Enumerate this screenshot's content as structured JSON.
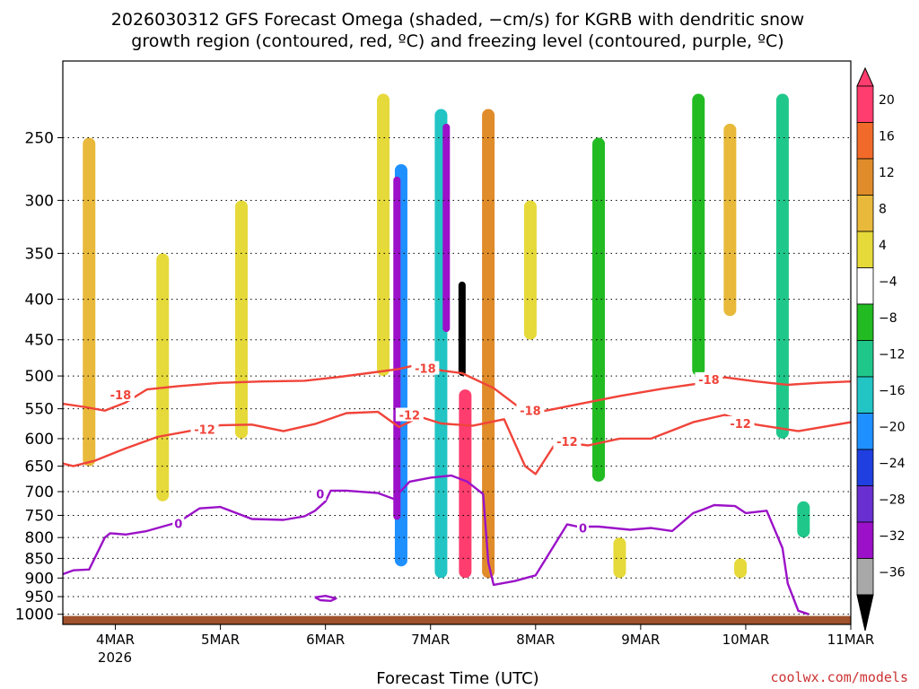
{
  "chart_data": {
    "type": "heatmap",
    "title_line1": "2026030312 GFS Forecast Omega (shaded, −cm/s) for KGRB with dendritic snow",
    "title_line2": "growth region (contoured, red, ºC) and freezing level (contoured, purple, ºC)",
    "xlabel": "Forecast Time (UTC)",
    "ylabel": "",
    "credit": "coolwx.com/models",
    "x_tick_labels": [
      "4MAR",
      "5MAR",
      "6MAR",
      "7MAR",
      "8MAR",
      "9MAR",
      "10MAR",
      "11MAR"
    ],
    "x_year_label": "2026",
    "x_day_range": [
      3.5,
      11
    ],
    "y_tick_labels": [
      "250",
      "300",
      "350",
      "400",
      "450",
      "500",
      "550",
      "600",
      "650",
      "700",
      "750",
      "800",
      "850",
      "900",
      "950",
      "1000"
    ],
    "y_pressure_range": [
      200,
      1030
    ],
    "y_scale": "log-pressure",
    "grid": true,
    "colorbar_labels": [
      "20",
      "16",
      "12",
      "8",
      "4",
      "−4",
      "−8",
      "−12",
      "−16",
      "−20",
      "−24",
      "−28",
      "−32",
      "−36"
    ],
    "colorbar_colors": [
      "#ff3d6e",
      "#f26a2a",
      "#e08c2a",
      "#e8b93a",
      "#e6d93a",
      "#ffffff",
      "#22bb22",
      "#1fc88a",
      "#22c4c4",
      "#1e90ff",
      "#1f3fe0",
      "#6a2fd0",
      "#9b10c8",
      "#a8a8a8",
      "#000000"
    ],
    "omega_features": [
      {
        "day": 3.75,
        "p_top": 250,
        "p_bot": 650,
        "value": 8
      },
      {
        "day": 4.45,
        "p_top": 350,
        "p_bot": 720,
        "value": 6
      },
      {
        "day": 5.2,
        "p_top": 300,
        "p_bot": 600,
        "value": 6
      },
      {
        "day": 6.55,
        "p_top": 220,
        "p_bot": 500,
        "value": 6
      },
      {
        "day": 6.72,
        "p_top": 270,
        "p_bot": 870,
        "value": -16
      },
      {
        "day": 6.68,
        "p_top": 280,
        "p_bot": 760,
        "value": -30
      },
      {
        "day": 7.1,
        "p_top": 230,
        "p_bot": 900,
        "value": -14
      },
      {
        "day": 7.15,
        "p_top": 240,
        "p_bot": 440,
        "value": -28
      },
      {
        "day": 7.3,
        "p_top": 380,
        "p_bot": 500,
        "value": -36
      },
      {
        "day": 7.33,
        "p_top": 520,
        "p_bot": 900,
        "value": 20
      },
      {
        "day": 7.55,
        "p_top": 230,
        "p_bot": 900,
        "value": 12
      },
      {
        "day": 7.95,
        "p_top": 300,
        "p_bot": 450,
        "value": 6
      },
      {
        "day": 8.6,
        "p_top": 250,
        "p_bot": 680,
        "value": -6
      },
      {
        "day": 8.8,
        "p_top": 800,
        "p_bot": 900,
        "value": 6
      },
      {
        "day": 9.55,
        "p_top": 220,
        "p_bot": 500,
        "value": -6
      },
      {
        "day": 9.85,
        "p_top": 240,
        "p_bot": 420,
        "value": 10
      },
      {
        "day": 10.35,
        "p_top": 220,
        "p_bot": 600,
        "value": -8
      },
      {
        "day": 10.55,
        "p_top": 720,
        "p_bot": 800,
        "value": -8
      },
      {
        "day": 9.95,
        "p_top": 850,
        "p_bot": 900,
        "value": 6
      }
    ],
    "series": [
      {
        "name": "-18",
        "color": "#f0443a",
        "x": [
          3.5,
          3.7,
          3.9,
          4.1,
          4.3,
          4.6,
          5.0,
          5.4,
          5.8,
          6.1,
          6.4,
          6.7,
          6.9,
          7.1,
          7.3,
          7.6,
          7.9,
          8.1,
          8.4,
          8.8,
          9.2,
          9.6,
          9.8,
          10.1,
          10.4,
          10.7,
          11.0
        ],
        "y": [
          542,
          547,
          553,
          540,
          520,
          515,
          510,
          508,
          507,
          502,
          496,
          490,
          483,
          492,
          496,
          518,
          555,
          553,
          543,
          530,
          519,
          510,
          502,
          508,
          513,
          510,
          508
        ]
      },
      {
        "name": "-12",
        "color": "#f0443a",
        "x": [
          3.5,
          3.6,
          3.8,
          4.1,
          4.4,
          4.7,
          5.0,
          5.3,
          5.6,
          5.9,
          6.2,
          6.5,
          6.7,
          6.9,
          7.1,
          7.4,
          7.7,
          7.9,
          8.0,
          8.2,
          8.5,
          8.8,
          9.1,
          9.5,
          9.8,
          10.1,
          10.5,
          11.0
        ],
        "y": [
          645,
          650,
          640,
          617,
          597,
          587,
          577,
          576,
          587,
          575,
          557,
          555,
          580,
          563,
          574,
          578,
          567,
          650,
          665,
          605,
          612,
          600,
          600,
          572,
          560,
          576,
          587,
          572
        ]
      },
      {
        "name": "0",
        "color": "#9b12c8",
        "x": [
          3.5,
          3.6,
          3.75,
          3.9,
          3.95,
          4.1,
          4.3,
          4.6,
          4.8,
          5.0,
          5.3,
          5.6,
          5.8,
          5.9,
          6.0,
          6.05,
          6.2,
          6.5,
          6.65,
          6.8,
          7.0,
          7.2,
          7.35,
          7.5,
          7.55,
          7.6,
          7.8,
          8.0,
          8.3,
          8.4,
          8.6,
          8.9,
          9.1,
          9.3,
          9.5,
          9.6,
          9.7,
          9.9,
          10.0,
          10.2,
          10.35,
          10.4,
          10.5,
          10.6
        ],
        "y": [
          890,
          880,
          878,
          800,
          790,
          793,
          785,
          765,
          735,
          732,
          758,
          760,
          752,
          740,
          720,
          698,
          698,
          703,
          715,
          680,
          672,
          668,
          680,
          705,
          860,
          918,
          908,
          893,
          770,
          775,
          775,
          782,
          778,
          785,
          745,
          737,
          728,
          730,
          745,
          740,
          825,
          915,
          990,
          1000
        ]
      },
      {
        "name": "0",
        "color": "#9b12c8",
        "x": [
          5.9,
          6.0,
          6.1,
          6.05,
          5.95,
          5.9
        ],
        "y": [
          952,
          948,
          955,
          962,
          960,
          952
        ]
      }
    ],
    "contour_labels": [
      {
        "text": "-18",
        "color": "#f0443a",
        "day": 4.05,
        "p": 528
      },
      {
        "text": "-18",
        "color": "#f0443a",
        "day": 6.95,
        "p": 489
      },
      {
        "text": "-18",
        "color": "#f0443a",
        "day": 7.95,
        "p": 553
      },
      {
        "text": "-18",
        "color": "#f0443a",
        "day": 9.65,
        "p": 505
      },
      {
        "text": "-12",
        "color": "#f0443a",
        "day": 4.85,
        "p": 584
      },
      {
        "text": "-12",
        "color": "#f0443a",
        "day": 6.8,
        "p": 560
      },
      {
        "text": "-12",
        "color": "#f0443a",
        "day": 8.3,
        "p": 605
      },
      {
        "text": "-12",
        "color": "#f0443a",
        "day": 9.95,
        "p": 574
      },
      {
        "text": "0",
        "color": "#9b12c8",
        "day": 4.6,
        "p": 768
      },
      {
        "text": "0",
        "color": "#9b12c8",
        "day": 5.95,
        "p": 705
      },
      {
        "text": "0",
        "color": "#9b12c8",
        "day": 8.45,
        "p": 778
      }
    ]
  }
}
